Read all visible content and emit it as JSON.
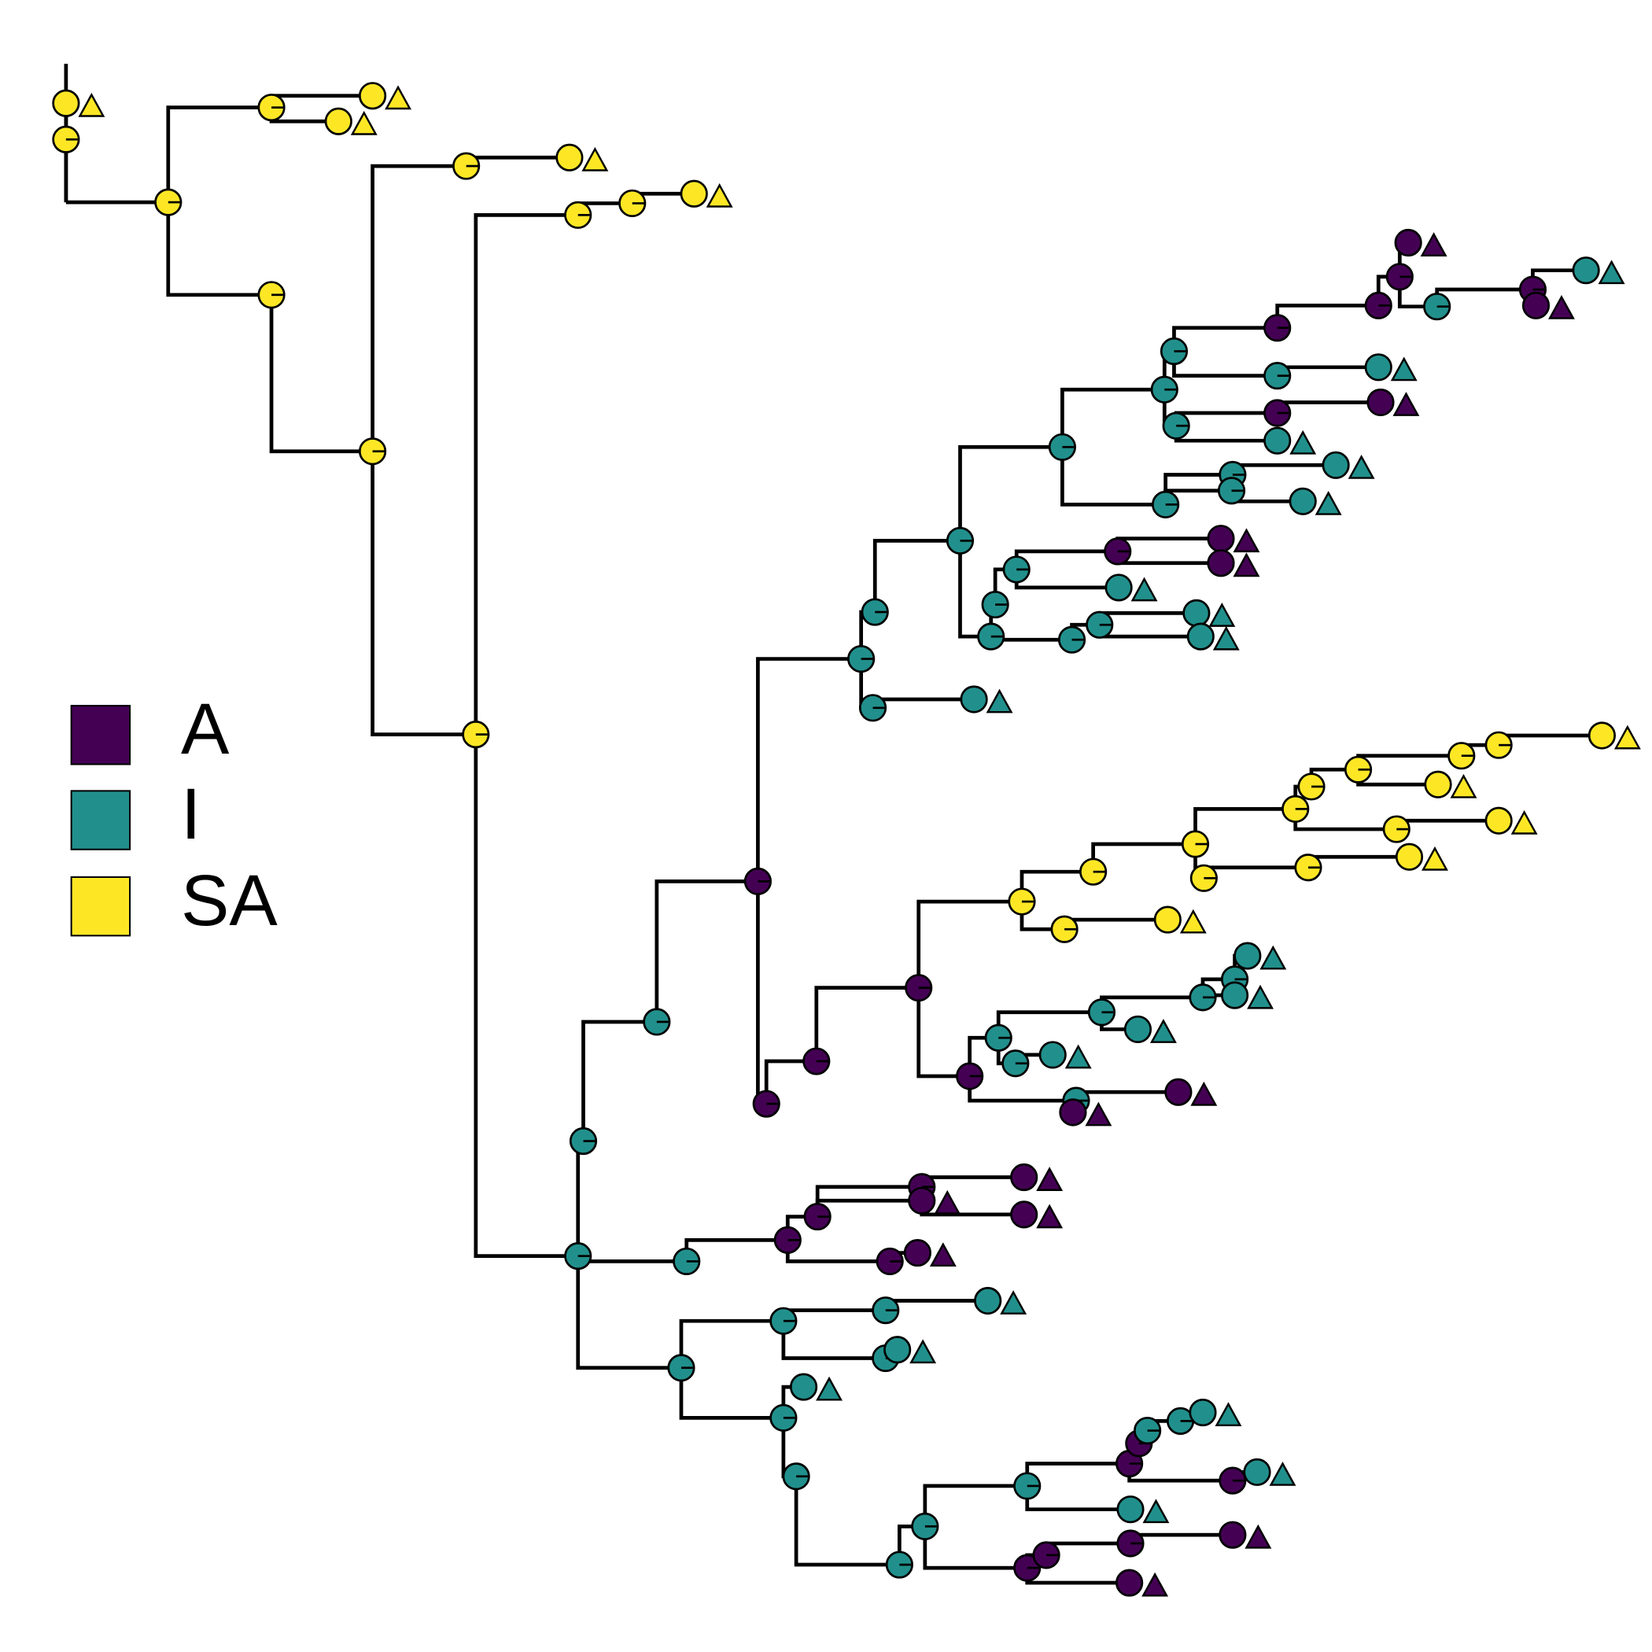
{
  "legend": {
    "items": [
      {
        "label": "A",
        "color": "#440154"
      },
      {
        "label": "I",
        "color": "#21908C"
      },
      {
        "label": "SA",
        "color": "#FDE725"
      }
    ]
  }
}
